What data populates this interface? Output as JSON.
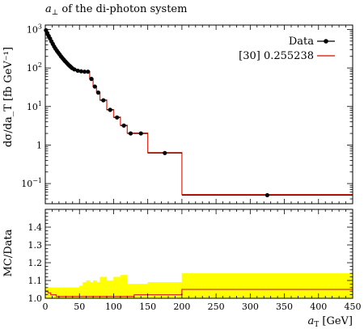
{
  "chart_data": {
    "type": "line",
    "title_pre": "a",
    "title_sub": "⊥",
    "title_post": " of the di-photon system",
    "xlabel_main": "a",
    "xlabel_sub": "T",
    "xlabel_unit": " [GeV]",
    "ylabel": "dσ/da_T [fb GeV⁻¹]",
    "ratio_ylabel": "MC/Data",
    "xlim": [
      0,
      450
    ],
    "ylim": [
      0.03,
      1300
    ],
    "yscale": "log",
    "ratio_ylim": [
      1.0,
      1.5
    ],
    "x_ticks": [
      "0",
      "50",
      "100",
      "150",
      "200",
      "250",
      "300",
      "350",
      "400",
      "450"
    ],
    "y_ticks": [
      {
        "value": 1000,
        "base": "10",
        "exp": "3"
      },
      {
        "value": 100,
        "base": "10",
        "exp": "2"
      },
      {
        "value": 10,
        "base": "10",
        "exp": "1"
      },
      {
        "value": 1,
        "base": "1",
        "exp": ""
      },
      {
        "value": 0.1,
        "base": "10",
        "exp": "−1"
      }
    ],
    "ratio_ticks": [
      "1.0",
      "1.1",
      "1.2",
      "1.3",
      "1.4"
    ],
    "legend": [
      {
        "label": "Data",
        "color": "#000000"
      },
      {
        "label": "[30] 0.255238",
        "color": "#e0301e"
      }
    ],
    "bins": [
      [
        0,
        2
      ],
      [
        2,
        4
      ],
      [
        4,
        6
      ],
      [
        6,
        8
      ],
      [
        8,
        10
      ],
      [
        10,
        12
      ],
      [
        12,
        14
      ],
      [
        14,
        16
      ],
      [
        16,
        18
      ],
      [
        18,
        20
      ],
      [
        20,
        22
      ],
      [
        22,
        24
      ],
      [
        24,
        26
      ],
      [
        26,
        28
      ],
      [
        28,
        30
      ],
      [
        30,
        32
      ],
      [
        32,
        34
      ],
      [
        34,
        36
      ],
      [
        36,
        38
      ],
      [
        38,
        40
      ],
      [
        40,
        45
      ],
      [
        45,
        50
      ],
      [
        50,
        55
      ],
      [
        55,
        60
      ],
      [
        60,
        65
      ],
      [
        65,
        70
      ],
      [
        70,
        75
      ],
      [
        75,
        80
      ],
      [
        80,
        90
      ],
      [
        90,
        100
      ],
      [
        100,
        110
      ],
      [
        110,
        120
      ],
      [
        120,
        130
      ],
      [
        130,
        150
      ],
      [
        150,
        200
      ],
      [
        200,
        450
      ]
    ],
    "series": [
      {
        "name": "Data",
        "values": [
          950,
          800,
          680,
          580,
          490,
          420,
          360,
          315,
          280,
          250,
          225,
          200,
          182,
          165,
          150,
          138,
          126,
          116,
          108,
          100,
          92,
          85,
          82,
          80,
          80,
          52,
          33,
          23,
          14.5,
          8.2,
          5.2,
          3.2,
          2.0,
          2.0,
          0.62,
          0.05
        ]
      },
      {
        "name": "[30] 0.255238",
        "values": [
          990,
          830,
          700,
          595,
          500,
          428,
          366,
          320,
          284,
          253,
          228,
          203,
          184,
          167,
          152,
          140,
          128,
          118,
          109,
          101,
          93,
          86,
          83,
          81,
          81,
          53,
          33.5,
          23.3,
          14.7,
          8.3,
          5.3,
          3.25,
          2.03,
          2.04,
          0.635,
          0.052
        ]
      }
    ],
    "ratio_mc": [
      1.04,
      1.04,
      1.03,
      1.03,
      1.02,
      1.02,
      1.02,
      1.02,
      1.01,
      1.01,
      1.01,
      1.01,
      1.01,
      1.01,
      1.01,
      1.01,
      1.01,
      1.01,
      1.01,
      1.01,
      1.01,
      1.01,
      1.01,
      1.01,
      1.01,
      1.01,
      1.01,
      1.01,
      1.01,
      1.01,
      1.01,
      1.01,
      1.01,
      1.02,
      1.02,
      1.05
    ],
    "ratio_band": [
      1.06,
      1.06,
      1.06,
      1.06,
      1.06,
      1.06,
      1.06,
      1.06,
      1.06,
      1.06,
      1.06,
      1.06,
      1.06,
      1.06,
      1.06,
      1.06,
      1.06,
      1.06,
      1.06,
      1.06,
      1.06,
      1.06,
      1.07,
      1.09,
      1.1,
      1.09,
      1.1,
      1.09,
      1.12,
      1.1,
      1.12,
      1.13,
      1.08,
      1.08,
      1.09,
      1.14
    ],
    "colors": {
      "data": "#000000",
      "mc": "#e0301e",
      "band": "#ffff00"
    }
  }
}
